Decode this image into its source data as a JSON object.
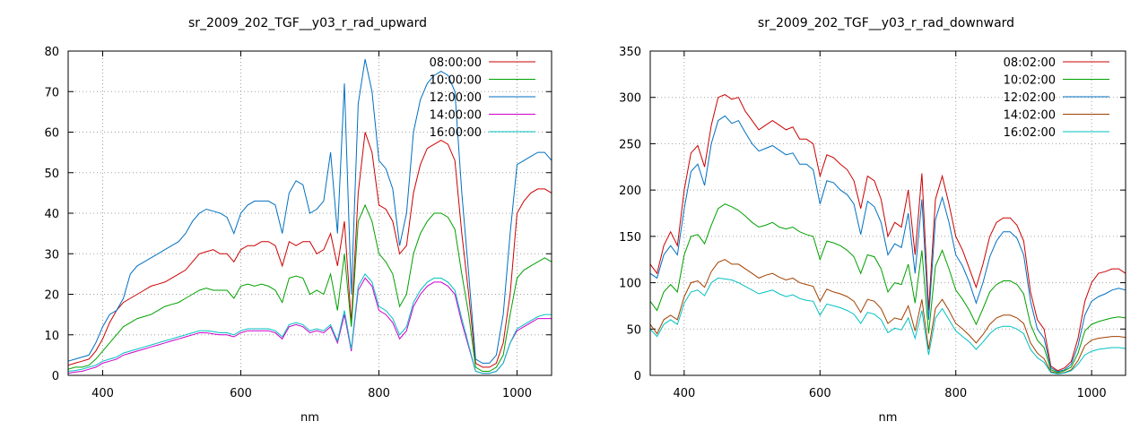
{
  "chart_data": [
    {
      "type": "line",
      "title": "sr_2009_202_TGF__y03_r_rad_upward",
      "xlabel": "nm",
      "ylabel": "",
      "xlim": [
        350,
        1050
      ],
      "ylim": [
        0,
        80
      ],
      "xticks": [
        400,
        600,
        800,
        1000
      ],
      "yticks": [
        0,
        10,
        20,
        30,
        40,
        50,
        60,
        70,
        80
      ],
      "grid": true,
      "legend": "top-right",
      "x": [
        350,
        360,
        370,
        380,
        390,
        400,
        410,
        420,
        430,
        440,
        450,
        460,
        470,
        480,
        490,
        500,
        510,
        520,
        530,
        540,
        550,
        560,
        570,
        580,
        590,
        600,
        610,
        620,
        630,
        640,
        650,
        660,
        670,
        680,
        690,
        700,
        710,
        720,
        730,
        740,
        750,
        760,
        770,
        780,
        790,
        800,
        810,
        820,
        830,
        840,
        850,
        860,
        870,
        880,
        890,
        900,
        910,
        920,
        930,
        940,
        950,
        960,
        970,
        980,
        990,
        1000,
        1010,
        1020,
        1030,
        1040,
        1050
      ],
      "series": [
        {
          "name": "08:00:00",
          "color": "#cc0000",
          "values": [
            2.5,
            3,
            3.5,
            4,
            6,
            9,
            13,
            16,
            18,
            19,
            20,
            21,
            22,
            22.5,
            23,
            24,
            25,
            26,
            28,
            30,
            30.5,
            31,
            30,
            30,
            28,
            31,
            32,
            32,
            33,
            33,
            32,
            27,
            33,
            32,
            33,
            33,
            30,
            31,
            35,
            27,
            38,
            13,
            45,
            60,
            55,
            42,
            41,
            38,
            30,
            32,
            45,
            52,
            56,
            57,
            58,
            57,
            53,
            35,
            20,
            3,
            2,
            2,
            3,
            8,
            20,
            40,
            43,
            45,
            46,
            46,
            45
          ]
        },
        {
          "name": "10:00:00",
          "color": "#00a000",
          "values": [
            1.5,
            2,
            2,
            2.5,
            4,
            6,
            8,
            10,
            12,
            13,
            14,
            14.5,
            15,
            16,
            17,
            17.5,
            18,
            19,
            20,
            21,
            21.5,
            21,
            21,
            21,
            19,
            22,
            22.5,
            22,
            22.5,
            22,
            21,
            18,
            24,
            24.5,
            24,
            20,
            21,
            20,
            25,
            16,
            30,
            12,
            38,
            42,
            38,
            30,
            28,
            25,
            17,
            20,
            30,
            35,
            38,
            40,
            40,
            39,
            36,
            25,
            15,
            2,
            1,
            1,
            2,
            5,
            15,
            24,
            26,
            27,
            28,
            29,
            28
          ]
        },
        {
          "name": "12:00:00",
          "color": "#0070c0",
          "values": [
            3.5,
            4,
            4.5,
            5,
            8,
            12,
            15,
            16,
            19,
            25,
            27,
            28,
            29,
            30,
            31,
            32,
            33,
            35,
            38,
            40,
            41,
            40.5,
            40,
            39,
            35,
            40,
            42,
            43,
            43,
            43,
            42,
            35,
            45,
            48,
            47,
            40,
            41,
            43,
            55,
            35,
            72,
            20,
            67,
            78,
            70,
            53,
            51,
            46,
            32,
            40,
            60,
            68,
            72,
            74,
            75,
            74,
            70,
            45,
            25,
            4,
            3,
            3,
            5,
            15,
            35,
            52,
            53,
            54,
            55,
            55,
            53
          ]
        },
        {
          "name": "14:00:00",
          "color": "#cc00cc",
          "values": [
            0.5,
            0.8,
            1,
            1.5,
            2,
            3,
            3.5,
            4,
            5,
            5.5,
            6,
            6.5,
            7,
            7.5,
            8,
            8.5,
            9,
            9.5,
            10,
            10.5,
            10.5,
            10.2,
            10,
            10,
            9.5,
            10.5,
            11,
            11,
            11,
            11,
            10.5,
            9,
            12,
            12.5,
            12,
            10.5,
            11,
            10.5,
            12,
            8,
            15,
            6,
            21,
            24,
            22,
            16,
            15,
            13,
            9,
            11,
            17,
            20,
            22,
            23,
            23,
            22,
            20,
            13,
            7,
            1,
            0.5,
            0.5,
            1,
            3,
            8,
            11,
            12,
            13,
            14,
            14,
            14
          ]
        },
        {
          "name": "16:00:00",
          "color": "#00c0c0",
          "values": [
            1,
            1.2,
            1.5,
            2,
            2.5,
            3.5,
            4,
            4.5,
            5.5,
            6,
            6.5,
            7,
            7.5,
            8,
            8.5,
            9,
            9.5,
            10,
            10.5,
            11,
            11,
            10.8,
            10.5,
            10.5,
            10,
            11,
            11.5,
            11.5,
            11.5,
            11.5,
            11,
            9.5,
            12.5,
            13,
            12.5,
            11,
            11.5,
            11,
            12.5,
            8.5,
            16,
            6.5,
            22,
            25,
            23,
            17,
            16,
            14,
            10,
            12,
            18,
            21,
            23,
            24,
            24,
            23,
            21,
            14,
            7.5,
            1,
            0.5,
            0.5,
            1,
            3,
            8,
            11.5,
            12.5,
            13.5,
            14.5,
            15,
            15
          ]
        }
      ]
    },
    {
      "type": "line",
      "title": "sr_2009_202_TGF__y03_r_rad_downward",
      "xlabel": "nm",
      "ylabel": "",
      "xlim": [
        350,
        1050
      ],
      "ylim": [
        0,
        350
      ],
      "xticks": [
        400,
        600,
        800,
        1000
      ],
      "yticks": [
        0,
        50,
        100,
        150,
        200,
        250,
        300,
        350
      ],
      "grid": true,
      "legend": "top-right",
      "x": [
        350,
        360,
        370,
        380,
        390,
        400,
        410,
        420,
        430,
        440,
        450,
        460,
        470,
        480,
        490,
        500,
        510,
        520,
        530,
        540,
        550,
        560,
        570,
        580,
        590,
        600,
        610,
        620,
        630,
        640,
        650,
        660,
        670,
        680,
        690,
        700,
        710,
        720,
        730,
        740,
        750,
        760,
        770,
        780,
        790,
        800,
        810,
        820,
        830,
        840,
        850,
        860,
        870,
        880,
        890,
        900,
        910,
        920,
        930,
        940,
        950,
        960,
        970,
        980,
        990,
        1000,
        1010,
        1020,
        1030,
        1040,
        1050
      ],
      "series": [
        {
          "name": "08:02:00",
          "color": "#cc0000",
          "values": [
            120,
            110,
            140,
            155,
            140,
            200,
            240,
            248,
            225,
            270,
            300,
            303,
            298,
            300,
            285,
            275,
            265,
            270,
            275,
            270,
            265,
            268,
            255,
            255,
            250,
            215,
            238,
            235,
            228,
            222,
            210,
            180,
            215,
            210,
            190,
            150,
            165,
            160,
            200,
            130,
            218,
            70,
            190,
            215,
            185,
            150,
            135,
            115,
            95,
            120,
            150,
            165,
            170,
            170,
            162,
            145,
            90,
            60,
            50,
            10,
            5,
            8,
            15,
            40,
            80,
            100,
            110,
            112,
            115,
            115,
            110
          ]
        },
        {
          "name": "10:02:00",
          "color": "#00a000",
          "values": [
            80,
            70,
            90,
            98,
            90,
            130,
            150,
            152,
            142,
            162,
            180,
            185,
            182,
            178,
            172,
            165,
            160,
            162,
            165,
            160,
            158,
            160,
            155,
            152,
            150,
            125,
            145,
            143,
            140,
            135,
            128,
            110,
            130,
            128,
            115,
            90,
            100,
            98,
            120,
            78,
            135,
            45,
            118,
            135,
            115,
            92,
            82,
            70,
            55,
            72,
            90,
            98,
            102,
            102,
            98,
            88,
            55,
            38,
            30,
            6,
            3,
            5,
            9,
            24,
            48,
            55,
            58,
            60,
            62,
            63,
            62
          ]
        },
        {
          "name": "12:02:00",
          "color": "#0070c0",
          "values": [
            110,
            105,
            130,
            140,
            130,
            180,
            220,
            228,
            205,
            250,
            275,
            280,
            272,
            275,
            262,
            250,
            242,
            245,
            248,
            243,
            238,
            240,
            228,
            228,
            222,
            185,
            210,
            208,
            200,
            195,
            185,
            152,
            188,
            182,
            165,
            130,
            142,
            138,
            175,
            110,
            190,
            60,
            168,
            192,
            165,
            130,
            118,
            100,
            78,
            100,
            128,
            145,
            155,
            155,
            148,
            130,
            80,
            50,
            40,
            8,
            4,
            6,
            12,
            32,
            65,
            80,
            85,
            88,
            92,
            94,
            92
          ]
        },
        {
          "name": "14:02:00",
          "color": "#a04000",
          "values": [
            55,
            45,
            60,
            65,
            60,
            85,
            100,
            102,
            95,
            112,
            122,
            125,
            120,
            120,
            115,
            110,
            105,
            108,
            110,
            106,
            103,
            105,
            100,
            98,
            96,
            80,
            93,
            90,
            88,
            85,
            80,
            68,
            82,
            80,
            72,
            56,
            62,
            60,
            75,
            48,
            82,
            28,
            72,
            82,
            70,
            56,
            50,
            43,
            35,
            44,
            55,
            62,
            65,
            65,
            62,
            56,
            35,
            24,
            18,
            4,
            2,
            3,
            6,
            16,
            32,
            38,
            40,
            41,
            42,
            42,
            41
          ]
        },
        {
          "name": "16:02:00",
          "color": "#00c0c0",
          "values": [
            50,
            42,
            55,
            60,
            55,
            78,
            90,
            92,
            86,
            100,
            105,
            104,
            103,
            100,
            96,
            92,
            88,
            90,
            92,
            88,
            85,
            87,
            83,
            81,
            80,
            65,
            77,
            75,
            73,
            70,
            66,
            56,
            68,
            66,
            60,
            46,
            51,
            49,
            62,
            40,
            70,
            22,
            62,
            72,
            60,
            48,
            42,
            36,
            28,
            36,
            45,
            51,
            53,
            53,
            50,
            45,
            28,
            19,
            14,
            3,
            1.5,
            2.5,
            5,
            12,
            22,
            26,
            28,
            29,
            30,
            30,
            29
          ]
        }
      ]
    }
  ]
}
